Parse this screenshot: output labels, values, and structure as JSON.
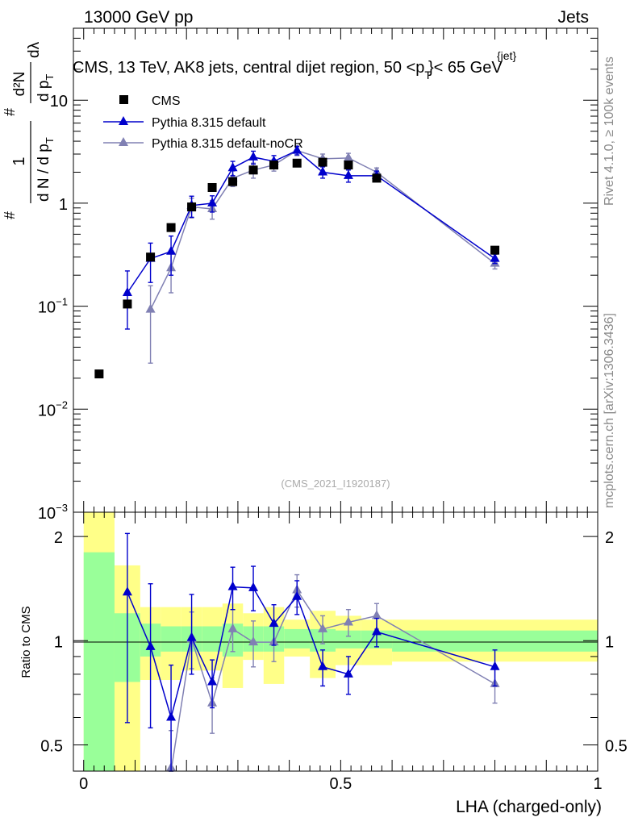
{
  "header": {
    "left": "13000 GeV pp",
    "right": "Jets"
  },
  "side_text": {
    "rivet": "Rivet 4.1.0, ≥ 100k events",
    "mcplots": "mcplots.cern.ch [arXiv:1306.3436]"
  },
  "colors": {
    "data": "#000000",
    "pythia_default": "#0000cc",
    "pythia_nocr": "#8080b3",
    "band_inner": "#99ff99",
    "band_outer": "#ffff88"
  },
  "chart_data": [
    {
      "type": "scatter",
      "panel": "main",
      "title": "CMS, 13 TeV, AK8 jets, central dijet region, 50 <p_T^{jet}< 65 GeV",
      "title_parts": {
        "prefix": "CMS, 13 TeV, AK8 jets, central dijet region, 50 <p",
        "sub": "T",
        "sup": "{jet}",
        "suffix": "}< 65 GeV"
      },
      "ylabel_parts": {
        "frac1_num": "1",
        "frac1_den": "d N / d p",
        "frac1_den_sub": "T",
        "frac2_num": "d²N",
        "frac2_den": "d p",
        "frac2_den_sub": "T",
        "tail": "dλ",
        "hash": "#"
      },
      "yscale": "log",
      "ylim": [
        0.001,
        50
      ],
      "xlim": [
        -0.02,
        1.0
      ],
      "ytick_values": [
        0.001,
        0.01,
        0.1,
        1,
        10
      ],
      "ytick_labels": [
        {
          "base": "10",
          "exp": "−3"
        },
        {
          "base": "10",
          "exp": "−2"
        },
        {
          "base": "10",
          "exp": "−1"
        },
        {
          "base": "1",
          "exp": ""
        },
        {
          "base": "10",
          "exp": ""
        }
      ],
      "watermark": "(CMS_2021_I1920187)",
      "legend_position": "top-left",
      "series": [
        {
          "name": "CMS",
          "marker": "square",
          "x": [
            0.03,
            0.085,
            0.13,
            0.17,
            0.21,
            0.25,
            0.29,
            0.33,
            0.37,
            0.415,
            0.465,
            0.515,
            0.57,
            0.8
          ],
          "values": [
            0.022,
            0.105,
            0.3,
            0.58,
            0.92,
            1.42,
            1.62,
            2.1,
            2.35,
            2.45,
            2.5,
            2.35,
            1.75,
            0.35
          ]
        },
        {
          "name": "Pythia 8.315 default",
          "marker": "triangle",
          "x": [
            0.085,
            0.13,
            0.17,
            0.21,
            0.25,
            0.29,
            0.33,
            0.37,
            0.415,
            0.465,
            0.515,
            0.57,
            0.8
          ],
          "values": [
            0.135,
            0.29,
            0.34,
            0.95,
            1.0,
            2.2,
            2.8,
            2.55,
            3.25,
            2.0,
            1.85,
            1.85,
            0.29
          ],
          "err_lo": [
            0.075,
            0.12,
            0.14,
            0.22,
            0.18,
            0.35,
            0.4,
            0.35,
            0.3,
            0.25,
            0.25,
            0.2,
            0.03
          ],
          "err_hi": [
            0.085,
            0.12,
            0.14,
            0.22,
            0.18,
            0.35,
            0.4,
            0.35,
            0.3,
            0.25,
            0.25,
            0.2,
            0.03
          ]
        },
        {
          "name": "Pythia 8.315 default-noCR",
          "marker": "triangle",
          "x": [
            0.13,
            0.17,
            0.21,
            0.25,
            0.29,
            0.33,
            0.37,
            0.415,
            0.465,
            0.515,
            0.57,
            0.8
          ],
          "values": [
            0.093,
            0.235,
            0.92,
            0.88,
            1.75,
            2.1,
            2.35,
            3.25,
            2.7,
            2.75,
            2.0,
            0.26
          ],
          "err_lo": [
            0.065,
            0.1,
            0.2,
            0.18,
            0.3,
            0.35,
            0.3,
            0.35,
            0.3,
            0.3,
            0.2,
            0.03
          ],
          "err_hi": [
            0.065,
            0.1,
            0.2,
            0.18,
            0.3,
            0.35,
            0.3,
            0.35,
            0.3,
            0.3,
            0.2,
            0.03
          ]
        }
      ]
    },
    {
      "type": "scatter",
      "panel": "ratio",
      "ylabel": "Ratio to CMS",
      "xlabel": "LHA (charged-only)",
      "yscale": "log",
      "ylim": [
        0.42,
        2.35
      ],
      "xlim": [
        -0.02,
        1.0
      ],
      "xticks": [
        0,
        0.5,
        1
      ],
      "xtick_labels": [
        "0",
        "0.5",
        "1"
      ],
      "yticks": [
        0.5,
        1,
        2
      ],
      "ytick_labels": [
        "0.5",
        "1",
        "2"
      ],
      "bands": {
        "edges": [
          0.0,
          0.06,
          0.11,
          0.15,
          0.19,
          0.23,
          0.27,
          0.31,
          0.35,
          0.39,
          0.44,
          0.49,
          0.54,
          0.6,
          1.0
        ],
        "inner_lo": [
          0.35,
          0.76,
          0.9,
          0.93,
          0.93,
          0.93,
          0.9,
          0.93,
          0.93,
          0.95,
          0.93,
          0.95,
          0.95,
          0.93
        ],
        "inner_hi": [
          1.8,
          1.2,
          1.12,
          1.1,
          1.1,
          1.1,
          1.12,
          1.1,
          1.1,
          1.08,
          1.08,
          1.07,
          1.07,
          1.07
        ],
        "outer_lo": [
          0.35,
          0.38,
          0.77,
          0.77,
          0.82,
          0.82,
          0.73,
          0.88,
          0.75,
          0.9,
          0.78,
          0.85,
          0.85,
          0.87
        ],
        "outer_hi": [
          2.35,
          1.65,
          1.25,
          1.25,
          1.25,
          1.25,
          1.28,
          1.2,
          1.25,
          1.15,
          1.22,
          1.18,
          1.15,
          1.15
        ]
      },
      "series": [
        {
          "name": "Pythia 8.315 default",
          "x": [
            0.085,
            0.13,
            0.17,
            0.21,
            0.25,
            0.29,
            0.33,
            0.37,
            0.415,
            0.465,
            0.515,
            0.57,
            0.8
          ],
          "values": [
            1.38,
            0.96,
            0.6,
            1.02,
            0.76,
            1.43,
            1.42,
            1.12,
            1.34,
            0.84,
            0.8,
            1.06,
            0.84
          ],
          "err_lo": [
            0.8,
            0.4,
            0.22,
            0.22,
            0.12,
            0.2,
            0.2,
            0.15,
            0.15,
            0.1,
            0.1,
            0.1,
            0.1
          ],
          "err_hi": [
            0.66,
            0.5,
            0.25,
            0.34,
            0.12,
            0.2,
            0.22,
            0.15,
            0.15,
            0.1,
            0.1,
            0.1,
            0.1
          ]
        },
        {
          "name": "Pythia 8.315 default-noCR",
          "x": [
            0.17,
            0.21,
            0.25,
            0.29,
            0.33,
            0.37,
            0.415,
            0.465,
            0.515,
            0.57,
            0.8
          ],
          "values": [
            0.41,
            1.01,
            0.66,
            1.08,
            0.99,
            0.99,
            1.4,
            1.08,
            1.13,
            1.18,
            0.75
          ],
          "err_lo": [
            0.14,
            0.18,
            0.12,
            0.15,
            0.15,
            0.12,
            0.15,
            0.1,
            0.1,
            0.1,
            0.09
          ],
          "err_hi": [
            0.14,
            0.2,
            0.12,
            0.15,
            0.15,
            0.12,
            0.15,
            0.1,
            0.1,
            0.1,
            0.09
          ]
        }
      ]
    }
  ]
}
